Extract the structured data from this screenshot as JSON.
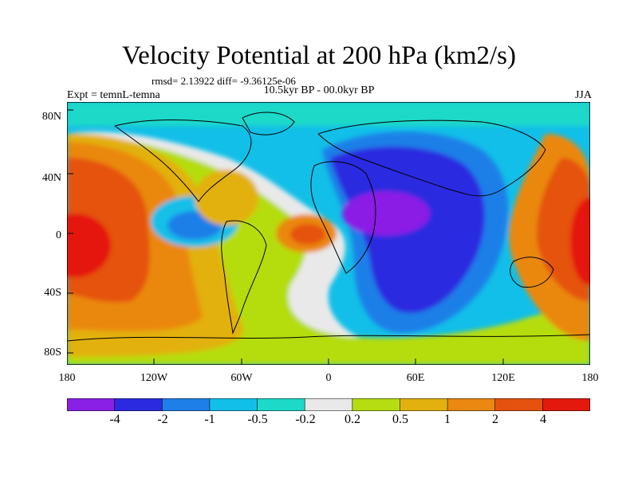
{
  "header": {
    "title": "Velocity Potential at 200 hPa (km2/s)",
    "stats": "rmsd= 2.13922 diff= -9.36125e-06",
    "subtitle": "10.5kyr BP - 00.0kyr BP",
    "experiment": "Expt = temnL-temna",
    "season": "JJA"
  },
  "map": {
    "lat_labels": [
      "80N",
      "40N",
      "0",
      "40S",
      "80S"
    ],
    "lon_labels": [
      "180",
      "120W",
      "60W",
      "0",
      "60E",
      "120E",
      "180"
    ],
    "field_features": [
      {
        "name": "central-pacific-positive",
        "level": 4
      },
      {
        "name": "east-pacific-americas-negative",
        "level": -1
      },
      {
        "name": "tropical-atlantic-positive",
        "level": 2
      },
      {
        "name": "afro-asian-negative-core",
        "level": -4
      },
      {
        "name": "maritime-continent-positive",
        "level": 4
      }
    ]
  },
  "colorbar": {
    "labels": [
      "-4",
      "-2",
      "-1",
      "-0.5",
      "-0.2",
      "0.2",
      "0.5",
      "1",
      "2",
      "4"
    ],
    "colors": [
      "#8a1fe6",
      "#2c2ae0",
      "#1f7fe8",
      "#12bfe8",
      "#1cd9c8",
      "#e9e9e9",
      "#b5dd11",
      "#e2b10e",
      "#ea8811",
      "#e5520f",
      "#e4190e"
    ]
  }
}
